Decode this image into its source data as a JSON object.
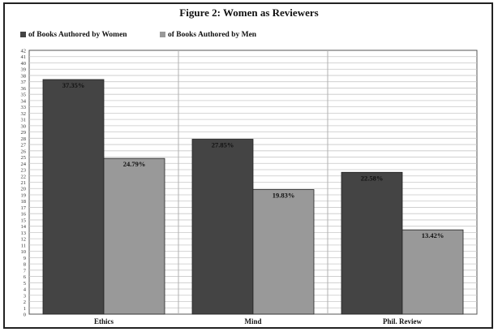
{
  "chart_data": {
    "type": "bar",
    "title": "Figure 2: Women as Reviewers",
    "categories": [
      "Ethics",
      "Mind",
      "Phil. Review"
    ],
    "series": [
      {
        "name": "of Books Authored by Women",
        "values": [
          37.35,
          27.85,
          22.58
        ],
        "labels": [
          "37.35%",
          "27.85%",
          "22.58%"
        ],
        "color": "#444444"
      },
      {
        "name": "of Books Authored by Men",
        "values": [
          24.79,
          19.83,
          13.42
        ],
        "labels": [
          "24.79%",
          "19.83%",
          "13.42%"
        ],
        "color": "#999999"
      }
    ],
    "ylim": [
      0,
      42
    ],
    "ytick_step": 1,
    "grid": true,
    "legend_position": "top-left"
  }
}
